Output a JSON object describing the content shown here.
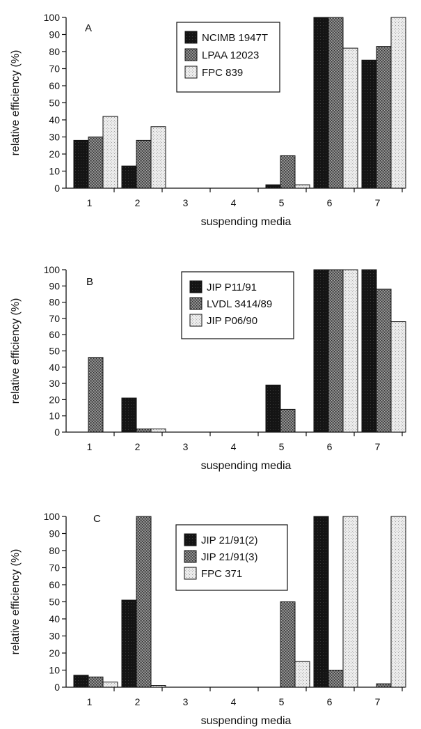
{
  "chart_data": [
    {
      "type": "bar",
      "panel_label": "A",
      "categories": [
        "1",
        "2",
        "3",
        "4",
        "5",
        "6",
        "7"
      ],
      "xlabel": "suspending media",
      "ylabel": "relative efficiency (%)",
      "yticks": [
        "0",
        "10",
        "20",
        "30",
        "40",
        "50",
        "60",
        "70",
        "80",
        "90",
        "100"
      ],
      "ylim": [
        0,
        100
      ],
      "legend_position": "top-center",
      "series": [
        {
          "name": "NCIMB 1947T",
          "values": [
            28,
            13,
            0,
            0,
            2,
            100,
            75
          ]
        },
        {
          "name": "LPAA 12023",
          "values": [
            30,
            28,
            0,
            0,
            19,
            100,
            83
          ]
        },
        {
          "name": "FPC 839",
          "values": [
            42,
            36,
            0,
            0,
            2,
            82,
            100
          ]
        }
      ]
    },
    {
      "type": "bar",
      "panel_label": "B",
      "categories": [
        "1",
        "2",
        "3",
        "4",
        "5",
        "6",
        "7"
      ],
      "xlabel": "suspending media",
      "ylabel": "relative efficiency (%)",
      "yticks": [
        "0",
        "10",
        "20",
        "30",
        "40",
        "50",
        "60",
        "70",
        "80",
        "90",
        "100"
      ],
      "ylim": [
        0,
        100
      ],
      "legend_position": "top-center",
      "series": [
        {
          "name": "JIP P11/91",
          "values": [
            0,
            21,
            0,
            0,
            29,
            100,
            100
          ]
        },
        {
          "name": "LVDL 3414/89",
          "values": [
            46,
            2,
            0,
            0,
            14,
            100,
            88
          ]
        },
        {
          "name": "JIP P06/90",
          "values": [
            0,
            2,
            0,
            0,
            0,
            100,
            68
          ]
        }
      ]
    },
    {
      "type": "bar",
      "panel_label": "C",
      "categories": [
        "1",
        "2",
        "3",
        "4",
        "5",
        "6",
        "7"
      ],
      "xlabel": "suspending media",
      "ylabel": "relative efficiency (%)",
      "yticks": [
        "0",
        "10",
        "20",
        "30",
        "40",
        "50",
        "60",
        "70",
        "80",
        "90",
        "100"
      ],
      "ylim": [
        0,
        100
      ],
      "legend_position": "top-center",
      "series": [
        {
          "name": "JIP 21/91(2)",
          "values": [
            7,
            51,
            0,
            0,
            0,
            100,
            0
          ]
        },
        {
          "name": "JIP 21/91(3)",
          "values": [
            6,
            100,
            0,
            0,
            50,
            10,
            2
          ]
        },
        {
          "name": "FPC 371",
          "values": [
            3,
            1,
            0,
            0,
            15,
            100,
            100
          ]
        }
      ]
    }
  ]
}
